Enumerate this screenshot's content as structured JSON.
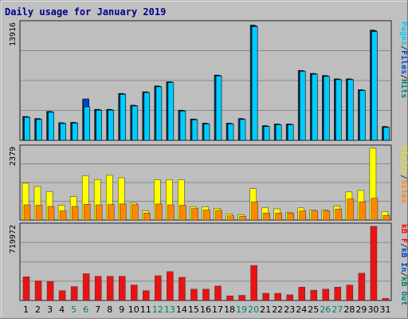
{
  "chart_data": {
    "type": "bar",
    "title": "Daily usage for January 2019",
    "days": [
      "1",
      "2",
      "3",
      "4",
      "5",
      "6",
      "7",
      "8",
      "9",
      "10",
      "11",
      "12",
      "13",
      "14",
      "15",
      "16",
      "17",
      "18",
      "19",
      "20",
      "21",
      "22",
      "23",
      "24",
      "25",
      "26",
      "27",
      "28",
      "29",
      "30",
      "31"
    ],
    "weekend_days": [
      "5",
      "6",
      "12",
      "13",
      "19",
      "20",
      "26",
      "27"
    ],
    "panels": [
      {
        "name": "pages-files-hits",
        "max_label": "13916",
        "ymax": 13916,
        "axis_legend": [
          {
            "text": "Pages",
            "color": "#00CCFF"
          },
          {
            "text": "/",
            "color": "#333333"
          },
          {
            "text": "Files",
            "color": "#0044CC"
          },
          {
            "text": "/",
            "color": "#333333"
          },
          {
            "text": "Hits",
            "color": "#00806B"
          }
        ],
        "series": [
          {
            "name": "Hits",
            "color": "#00806B",
            "values": [
              2850,
              2600,
              3450,
              2100,
              2150,
              4900,
              3700,
              3700,
              5600,
              4200,
              5800,
              6500,
              7000,
              3600,
              2550,
              2050,
              7800,
              2050,
              2600,
              13780,
              1750,
              1950,
              1950,
              8350,
              8000,
              7750,
              7350,
              7350,
              6050,
              13180,
              1650
            ]
          },
          {
            "name": "Files",
            "color": "#0044CC",
            "values": [
              2800,
              2550,
              3400,
              2050,
              2100,
              4950,
              3650,
              3650,
              5550,
              4150,
              5750,
              6450,
              6950,
              3550,
              2500,
              2000,
              7750,
              2000,
              2550,
              13700,
              1700,
              1900,
              1900,
              8300,
              7950,
              7700,
              7300,
              7300,
              6000,
              13100,
              1600
            ]
          },
          {
            "name": "Pages",
            "color": "#00CCFF",
            "values": [
              2750,
              2500,
              3350,
              2000,
              2050,
              4000,
              3600,
              3600,
              5500,
              4100,
              5700,
              6400,
              6900,
              3500,
              2450,
              1950,
              7700,
              1950,
              2500,
              13600,
              1650,
              1850,
              1850,
              8250,
              7900,
              7650,
              7250,
              7250,
              5950,
              13000,
              1550
            ]
          }
        ]
      },
      {
        "name": "visits-sites",
        "max_label": "2379",
        "ymax": 2379,
        "axis_legend": [
          {
            "text": "Visits",
            "color": "#E0E000"
          },
          {
            "text": "/",
            "color": "#333333"
          },
          {
            "text": "Sites",
            "color": "#FF8800"
          }
        ],
        "series": [
          {
            "name": "Visits",
            "color": "#FFFF00",
            "values": [
              1220,
              1110,
              940,
              490,
              780,
              1470,
              1340,
              1480,
              1400,
              570,
              300,
              1340,
              1340,
              1340,
              440,
              440,
              390,
              200,
              170,
              1040,
              410,
              370,
              260,
              400,
              330,
              330,
              460,
              930,
              980,
              2379,
              280
            ]
          },
          {
            "name": "Sites",
            "color": "#FF8800",
            "values": [
              500,
              490,
              450,
              300,
              450,
              520,
              500,
              510,
              530,
              510,
              230,
              530,
              500,
              490,
              380,
              330,
              320,
              140,
              120,
              600,
              230,
              230,
              230,
              300,
              300,
              300,
              360,
              700,
              600,
              720,
              150
            ]
          }
        ]
      },
      {
        "name": "kb-f-in-out",
        "max_label": "719972",
        "ymax": 719972,
        "axis_legend": [
          {
            "text": "kB F",
            "color": "#FF0000"
          },
          {
            "text": "/",
            "color": "#333333"
          },
          {
            "text": "kB In",
            "color": "#0044CC"
          },
          {
            "text": "/",
            "color": "#333333"
          },
          {
            "text": "kB Out",
            "color": "#00806B"
          }
        ],
        "series": [
          {
            "name": "kB F",
            "color": "#EE1111",
            "values": [
              230000,
              190000,
              185000,
              95000,
              135000,
              260000,
              235000,
              235000,
              235000,
              150000,
              95000,
              240000,
              280000,
              225000,
              110000,
              110000,
              140000,
              45000,
              50000,
              340000,
              70000,
              70000,
              55000,
              130000,
              100000,
              110000,
              130000,
              150000,
              265000,
              719972,
              20000
            ]
          }
        ]
      }
    ]
  }
}
